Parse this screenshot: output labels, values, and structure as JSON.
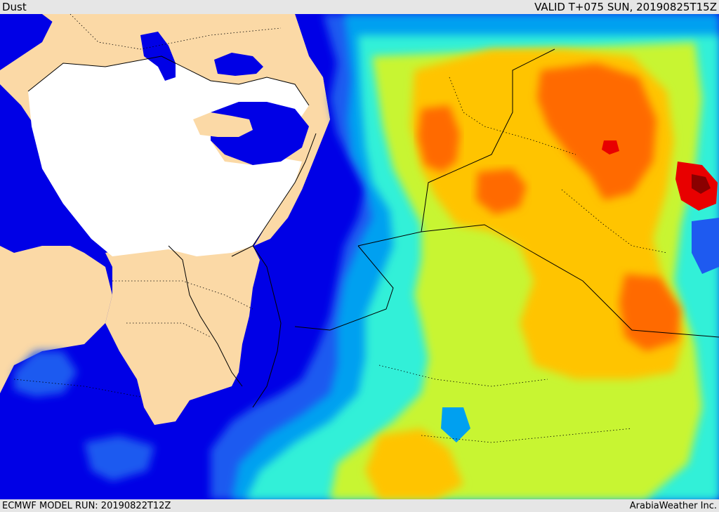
{
  "header": {
    "title": "Dust",
    "valid_time": "VALID T+075 SUN, 20190825T15Z"
  },
  "footer": {
    "model_run": "ECMWF MODEL RUN: 20190822T12Z",
    "credit": "ArabiaWeather Inc."
  },
  "palette": {
    "land": "#fbd9a6",
    "sea": "#ffffff",
    "level1": "#0000e6",
    "level2": "#1e5af0",
    "level3": "#00a0f0",
    "level4": "#30f0d8",
    "level5": "#c8f530",
    "level6": "#ffc400",
    "level7": "#ff6a00",
    "level8": "#e80000",
    "level9": "#8a0000",
    "borders": "#000000"
  }
}
